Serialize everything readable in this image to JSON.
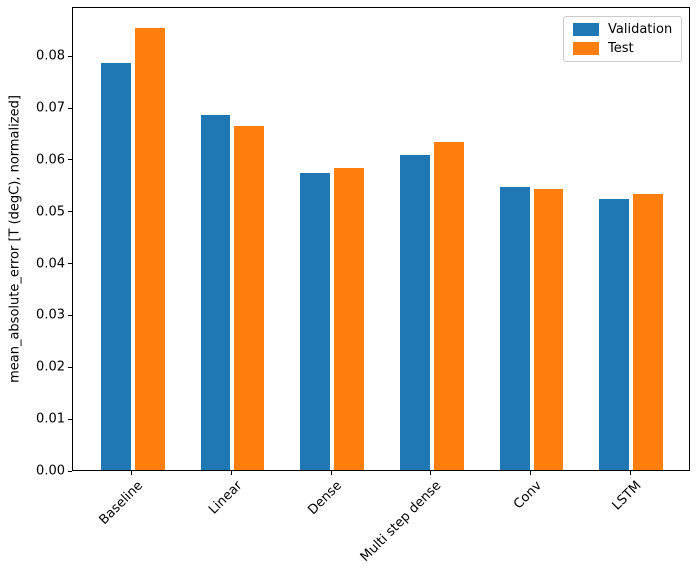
{
  "figure": {
    "background": "#ffffff",
    "axes_edge_color": "#000000"
  },
  "chart_data": {
    "type": "bar",
    "title": "",
    "xlabel": "",
    "ylabel": "mean_absolute_error [T (degC), normalized]",
    "categories": [
      "Baseline",
      "Linear",
      "Dense",
      "Multi step dense",
      "Conv",
      "LSTM"
    ],
    "series": [
      {
        "name": "Validation",
        "color": "#1f77b4",
        "values": [
          0.0785,
          0.0685,
          0.0572,
          0.0607,
          0.0545,
          0.0522
        ]
      },
      {
        "name": "Test",
        "color": "#ff7f0e",
        "values": [
          0.0852,
          0.0663,
          0.0583,
          0.0633,
          0.0543,
          0.0532
        ]
      }
    ],
    "ylim": [
      0,
      0.0895
    ],
    "yticks": [
      0.0,
      0.01,
      0.02,
      0.03,
      0.04,
      0.05,
      0.06,
      0.07,
      0.08
    ],
    "ytick_labels": [
      "0.00",
      "0.01",
      "0.02",
      "0.03",
      "0.04",
      "0.05",
      "0.06",
      "0.07",
      "0.08"
    ],
    "xtick_rotation_deg": 45,
    "grid": false,
    "legend": {
      "position": "upper right",
      "entries": [
        "Validation",
        "Test"
      ]
    }
  }
}
